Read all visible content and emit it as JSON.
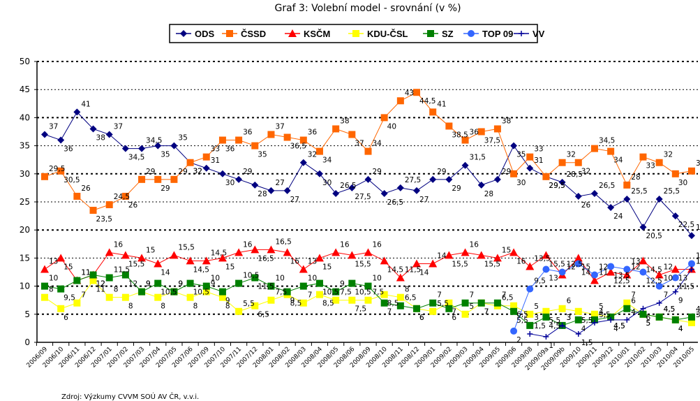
{
  "chart_data": {
    "type": "line",
    "title": "Graf 3: Volební model - srovnání (v %)",
    "xlabel": "",
    "ylabel": "",
    "ylim": [
      0,
      50
    ],
    "yticks": [
      0,
      5,
      10,
      15,
      20,
      25,
      30,
      35,
      40,
      45,
      50
    ],
    "grid": true,
    "legend_position": "top",
    "source": "Zdroj: Výzkumy CVVM SOÚ AV ČR, v.v.i.",
    "categories": [
      "2006/09",
      "2006/10",
      "2006/11",
      "2006/12",
      "2007/01",
      "2007/02",
      "2007/03",
      "2007/04",
      "2007/05",
      "2007/06",
      "2007/09",
      "2007/10",
      "2007/11",
      "2007/12",
      "2008/01",
      "2008/02",
      "2008/03",
      "2008/04",
      "2008/05",
      "2008/06",
      "2008/09",
      "2008/10",
      "2008/11",
      "2008/12",
      "2009/01",
      "2009/02",
      "2009/03",
      "2009/04",
      "2009/05",
      "2009/06",
      "2009/08",
      "2009/09a",
      "2009/09b",
      "2009/10",
      "2009/11",
      "2009/12",
      "2010/01",
      "2010/02",
      "2010/03",
      "2010/04",
      "2010/05"
    ],
    "series": [
      {
        "name": "ODS",
        "color": "#000080",
        "marker": "diamond",
        "values": [
          37,
          36,
          41,
          38,
          37,
          34.5,
          34.5,
          35,
          35,
          32,
          31,
          30,
          29,
          28,
          27,
          27,
          32,
          30,
          26.5,
          27.5,
          29,
          26.5,
          27.5,
          27,
          29,
          29,
          31.5,
          28,
          29,
          35,
          31,
          29.5,
          28.5,
          26,
          26.5,
          24,
          25.5,
          20.5,
          25.5,
          22.5,
          19
        ]
      },
      {
        "name": "ČSSD",
        "color": "#FF6600",
        "marker": "square",
        "values": [
          29.5,
          30.5,
          26,
          23.5,
          24.5,
          26,
          29,
          29,
          29,
          32,
          33,
          36,
          36,
          35,
          37,
          36.5,
          36,
          34,
          38,
          37,
          34,
          40,
          43,
          44.5,
          41,
          38.5,
          36,
          37.5,
          38,
          30,
          33,
          29.5,
          32,
          32,
          34.5,
          34,
          28,
          33,
          32,
          30,
          30.5
        ]
      },
      {
        "name": "KSČM",
        "color": "#FF0000",
        "marker": "triangle",
        "values": [
          13,
          15,
          11,
          12,
          16,
          15.5,
          15,
          14,
          15.5,
          14.5,
          14.5,
          15,
          16,
          16.5,
          16.5,
          16,
          13,
          15,
          16,
          15.5,
          16,
          14.5,
          11.5,
          14,
          14,
          15.5,
          16,
          15.5,
          15,
          16,
          13.5,
          15.5,
          12,
          15,
          11,
          12.5,
          12,
          14.5,
          12,
          13,
          13
        ]
      },
      {
        "name": "KDU-ČSL",
        "color": "#FFFF00",
        "marker": "square",
        "values": [
          8,
          6,
          7,
          11,
          8,
          8,
          9,
          8,
          9,
          8,
          9,
          8,
          5.5,
          6.5,
          7.5,
          8.5,
          7,
          8.5,
          7.5,
          7.5,
          7.5,
          8.5,
          8,
          6,
          5.5,
          7,
          5,
          7,
          6.5,
          6.5,
          5,
          5.5,
          6,
          5.5,
          5,
          4.5,
          7,
          5,
          4.5,
          4,
          3.5
        ]
      },
      {
        "name": "SZ",
        "color": "#008000",
        "marker": "square",
        "values": [
          10,
          9.5,
          11,
          12,
          11.5,
          12,
          9,
          10.5,
          9,
          10.5,
          10,
          9,
          10.5,
          11.5,
          10,
          9,
          10,
          10.5,
          9,
          10.5,
          10,
          7,
          6.5,
          6,
          7,
          6,
          7,
          7,
          7,
          5.5,
          3,
          4.5,
          3,
          4,
          4,
          4.5,
          6,
          5,
          4.5,
          4,
          4.5
        ]
      },
      {
        "name": "TOP 09",
        "color": "#3366FF",
        "marker": "circle",
        "values": [
          null,
          null,
          null,
          null,
          null,
          null,
          null,
          null,
          null,
          null,
          null,
          null,
          null,
          null,
          null,
          null,
          null,
          null,
          null,
          null,
          null,
          null,
          null,
          null,
          null,
          null,
          null,
          null,
          null,
          2,
          9.5,
          13,
          12.5,
          14,
          12,
          13.5,
          13,
          12.5,
          10,
          11.5,
          14
        ]
      },
      {
        "name": "VV",
        "color": "#000099",
        "marker": "plus",
        "values": [
          null,
          null,
          null,
          null,
          null,
          null,
          null,
          null,
          null,
          null,
          null,
          null,
          null,
          null,
          null,
          null,
          null,
          null,
          null,
          null,
          null,
          null,
          null,
          null,
          null,
          null,
          null,
          null,
          null,
          null,
          1.5,
          1,
          3,
          1.5,
          3.5,
          4,
          4,
          6,
          7,
          9,
          13
        ]
      }
    ]
  }
}
